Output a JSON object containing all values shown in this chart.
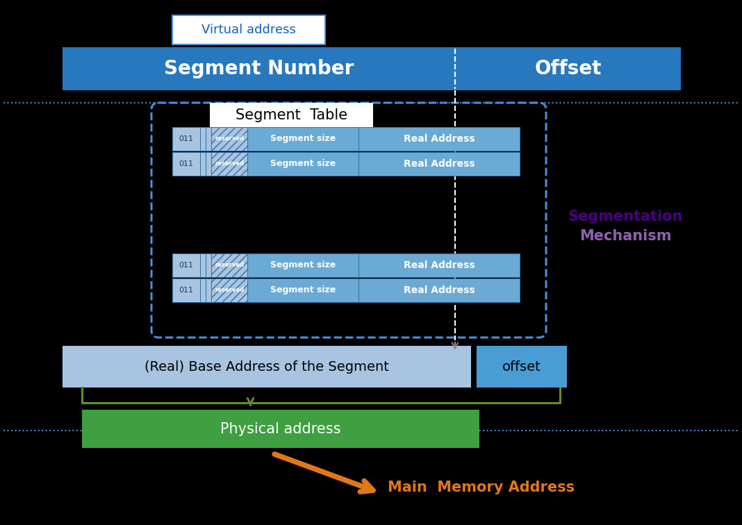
{
  "bg_color": "#000000",
  "virtual_address_label": "Virtual address",
  "segment_number_label": "Segment Number",
  "offset_label": "Offset",
  "segment_table_label": "Segment  Table",
  "reserved_label": "reserved",
  "segment_size_label": "Segment size",
  "real_address_label": "Real Address",
  "base_address_label": "(Real) Base Address of the Segment",
  "offset_box_label": "offset",
  "physical_address_label": "Physical address",
  "main_memory_label": "Main  Memory Address",
  "segmentation_label": "Segmentation",
  "mechanism_label": "Mechanism",
  "blue_bar_color": "#2878BE",
  "light_blue_cell": "#A8C4E0",
  "medium_blue_cell": "#6AAAD4",
  "offset_box_color": "#4A9DD4",
  "green_color": "#3EA040",
  "orange_color": "#E07818",
  "dark_blue_text": "#1060C0",
  "purple_dark": "#4B0082",
  "purple_light": "#9060B0",
  "dashed_border_color": "#4A90D9",
  "white": "#FFFFFF",
  "olive": "#6B8E23",
  "gray": "#888888",
  "figw": 10.68,
  "figh": 7.56,
  "dpi": 100
}
